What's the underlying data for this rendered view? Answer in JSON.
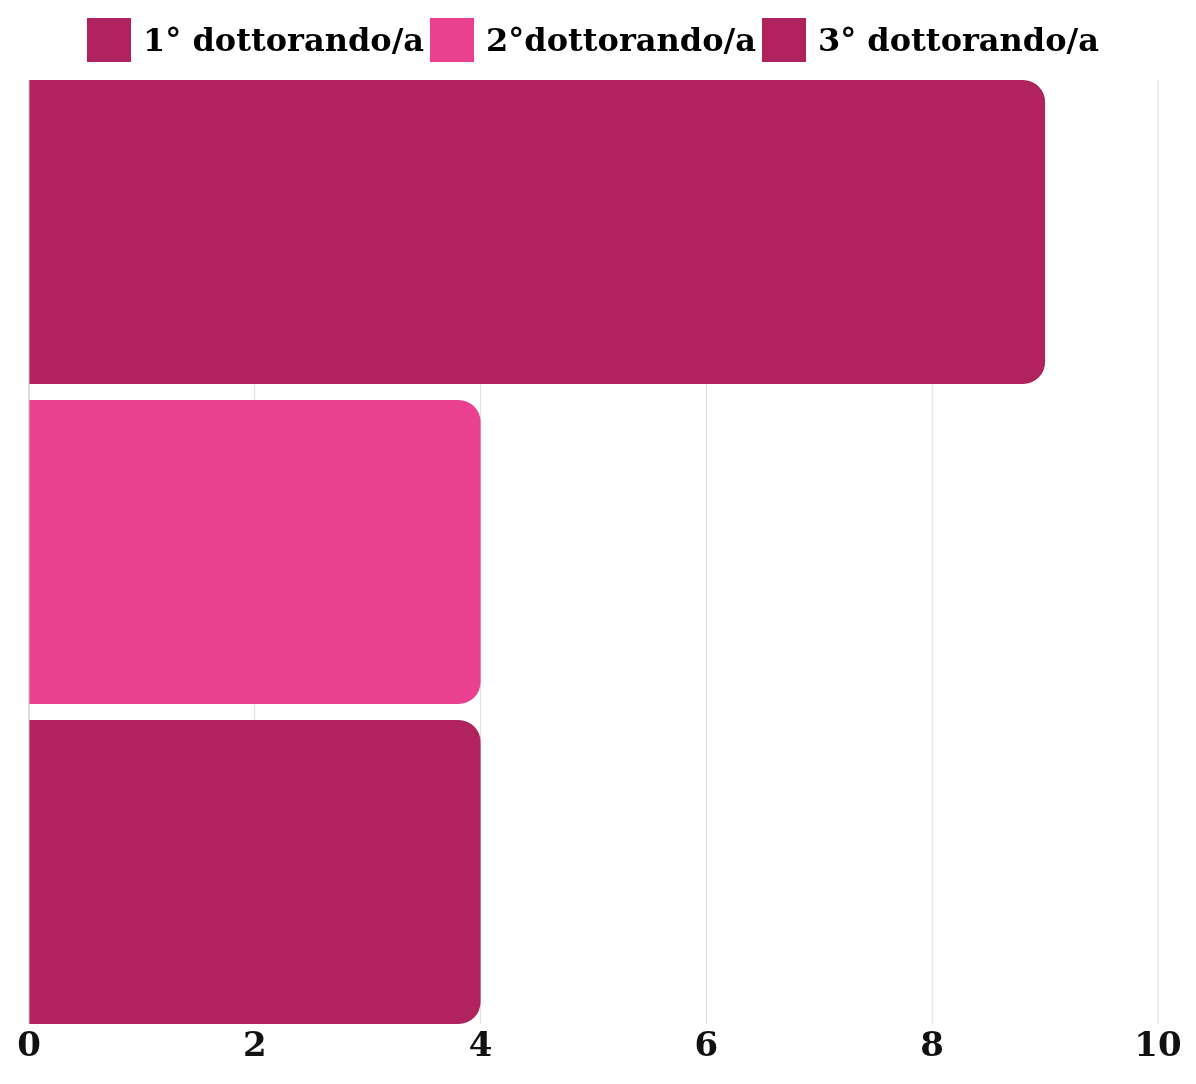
{
  "chart_data": {
    "type": "bar",
    "orientation": "horizontal",
    "categories": [
      null
    ],
    "series": [
      {
        "name": "1° dottorando/a",
        "color": "#b0235f",
        "values": [
          9
        ]
      },
      {
        "name": "2°dottorando/a",
        "color": "#e94190",
        "values": [
          4
        ]
      },
      {
        "name": "3° dottorando/a",
        "color": "#b0235f",
        "values": [
          4
        ]
      }
    ],
    "xlim": [
      0,
      10
    ],
    "xticks": [
      0,
      2,
      4,
      6,
      8,
      10
    ],
    "grid": "x",
    "legend": "top"
  }
}
